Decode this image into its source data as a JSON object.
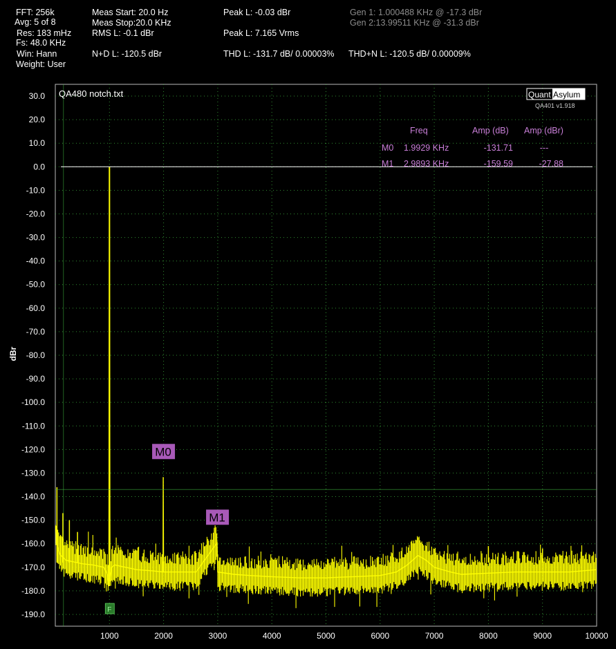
{
  "stats": {
    "fft": "FFT: 256k",
    "avg": "Avg: 5 of 8",
    "res": "Res: 183 mHz",
    "fs": "Fs: 48.0 KHz",
    "win": "Win: Hann",
    "weight": "Weight: User",
    "meas_start": "Meas Start: 20.0 Hz",
    "meas_stop": "Meas Stop:20.0 KHz",
    "rms": "RMS L: -0.1 dBr",
    "nd": "N+D L: -120.5 dBr",
    "peak_dbr": "Peak L: -0.03 dBr",
    "peak_vrms": "Peak L: 7.165 Vrms",
    "thd": "THD L: -131.7 dB/ 0.00003%",
    "thdn": "THD+N L: -120.5 dB/ 0.00009%",
    "gen1": "Gen 1: 1.000488 KHz @ -17.3  dBr",
    "gen2": "Gen 2:13.99511 KHz @ -31.3  dBr"
  },
  "colors": {
    "trace": "#ffff00",
    "marker_table": "#c97fd8",
    "marker_label_bg": "#a859b8",
    "grid": "#3fb33f",
    "ref_line": "#ffffff",
    "f_marker": "#2a7a2a"
  },
  "logo": {
    "part1": "Quant",
    "part2": "Asylum",
    "version": "QA401 v1.918"
  },
  "markers_table": {
    "headers": [
      "Freq",
      "Amp (dB)",
      "Amp (dBr)"
    ],
    "rows": [
      {
        "id": "M0",
        "freq": "1.9929 KHz",
        "amp_db": "-131.71",
        "amp_dbr": "---"
      },
      {
        "id": "M1",
        "freq": "2.9893 KHz",
        "amp_db": "-159.59",
        "amp_dbr": "-27.88"
      }
    ]
  },
  "chart_data": {
    "type": "line",
    "title": "QA480 notch.txt",
    "xlabel": "",
    "ylabel": "dBr",
    "xlim": [
      0,
      10000
    ],
    "ylim": [
      -195,
      35
    ],
    "x_ticks": [
      1000,
      2000,
      3000,
      4000,
      5000,
      6000,
      7000,
      8000,
      9000,
      10000
    ],
    "y_ticks": [
      30,
      20,
      10,
      0,
      -10,
      -20,
      -30,
      -40,
      -50,
      -60,
      -70,
      -80,
      -90,
      -100,
      -110,
      -120,
      -130,
      -140,
      -150,
      -160,
      -170,
      -180,
      -190
    ],
    "y_tick_labels": [
      "30.0",
      "20.0",
      "10.0",
      "0.0",
      "-10.0",
      "-20.0",
      "-30.0",
      "-40.0",
      "-50.0",
      "-60.0",
      "-70.0",
      "-80.0",
      "-90.0",
      "-100.0",
      "-110.0",
      "-120.0",
      "-130.0",
      "-140.0",
      "-150.0",
      "-160.0",
      "-170.0",
      "-180.0",
      "-190.0"
    ],
    "grid": true,
    "reference_line_y": 0,
    "threshold_line_y": -137,
    "series": [
      {
        "x": [
          0,
          30,
          60,
          100,
          150,
          200,
          300,
          400,
          500,
          700,
          900,
          960,
          990,
          1000,
          1010,
          1040,
          1100,
          1300,
          1500,
          1800,
          1990,
          1993,
          2000,
          2300,
          2600,
          2989,
          3000,
          3300,
          3600,
          4000,
          4500,
          5000,
          5500,
          6000,
          6300,
          6500,
          6700,
          6850,
          7000,
          7300,
          7500,
          8000,
          8500,
          9000,
          9500,
          10000
        ],
        "y": [
          -152,
          -160,
          -163,
          -165,
          -166,
          -167,
          -167.5,
          -168,
          -168.5,
          -169,
          -170,
          -173,
          -178,
          0,
          -176,
          -170,
          -169,
          -170,
          -171,
          -171.5,
          -172,
          -131.7,
          -172,
          -172,
          -172,
          -159.6,
          -172,
          -173,
          -173.5,
          -174,
          -174.5,
          -174.5,
          -174,
          -173.5,
          -172,
          -169,
          -165,
          -167,
          -170,
          -172,
          -173,
          -172.5,
          -172,
          -172,
          -172,
          -171
        ]
      }
    ],
    "spurs": [
      {
        "x": 30,
        "y": -136
      },
      {
        "x": 140,
        "y": -147
      },
      {
        "x": 260,
        "y": -150
      },
      {
        "x": 410,
        "y": -155
      },
      {
        "x": 8000,
        "y": -161
      },
      {
        "x": 9000,
        "y": -162
      }
    ],
    "markers": [
      {
        "label": "M0",
        "x": 1992.9,
        "y": -131.71
      },
      {
        "label": "M1",
        "x": 2989.3,
        "y": -159.59
      }
    ],
    "f_marker": {
      "label": "F",
      "x": 1000
    }
  }
}
